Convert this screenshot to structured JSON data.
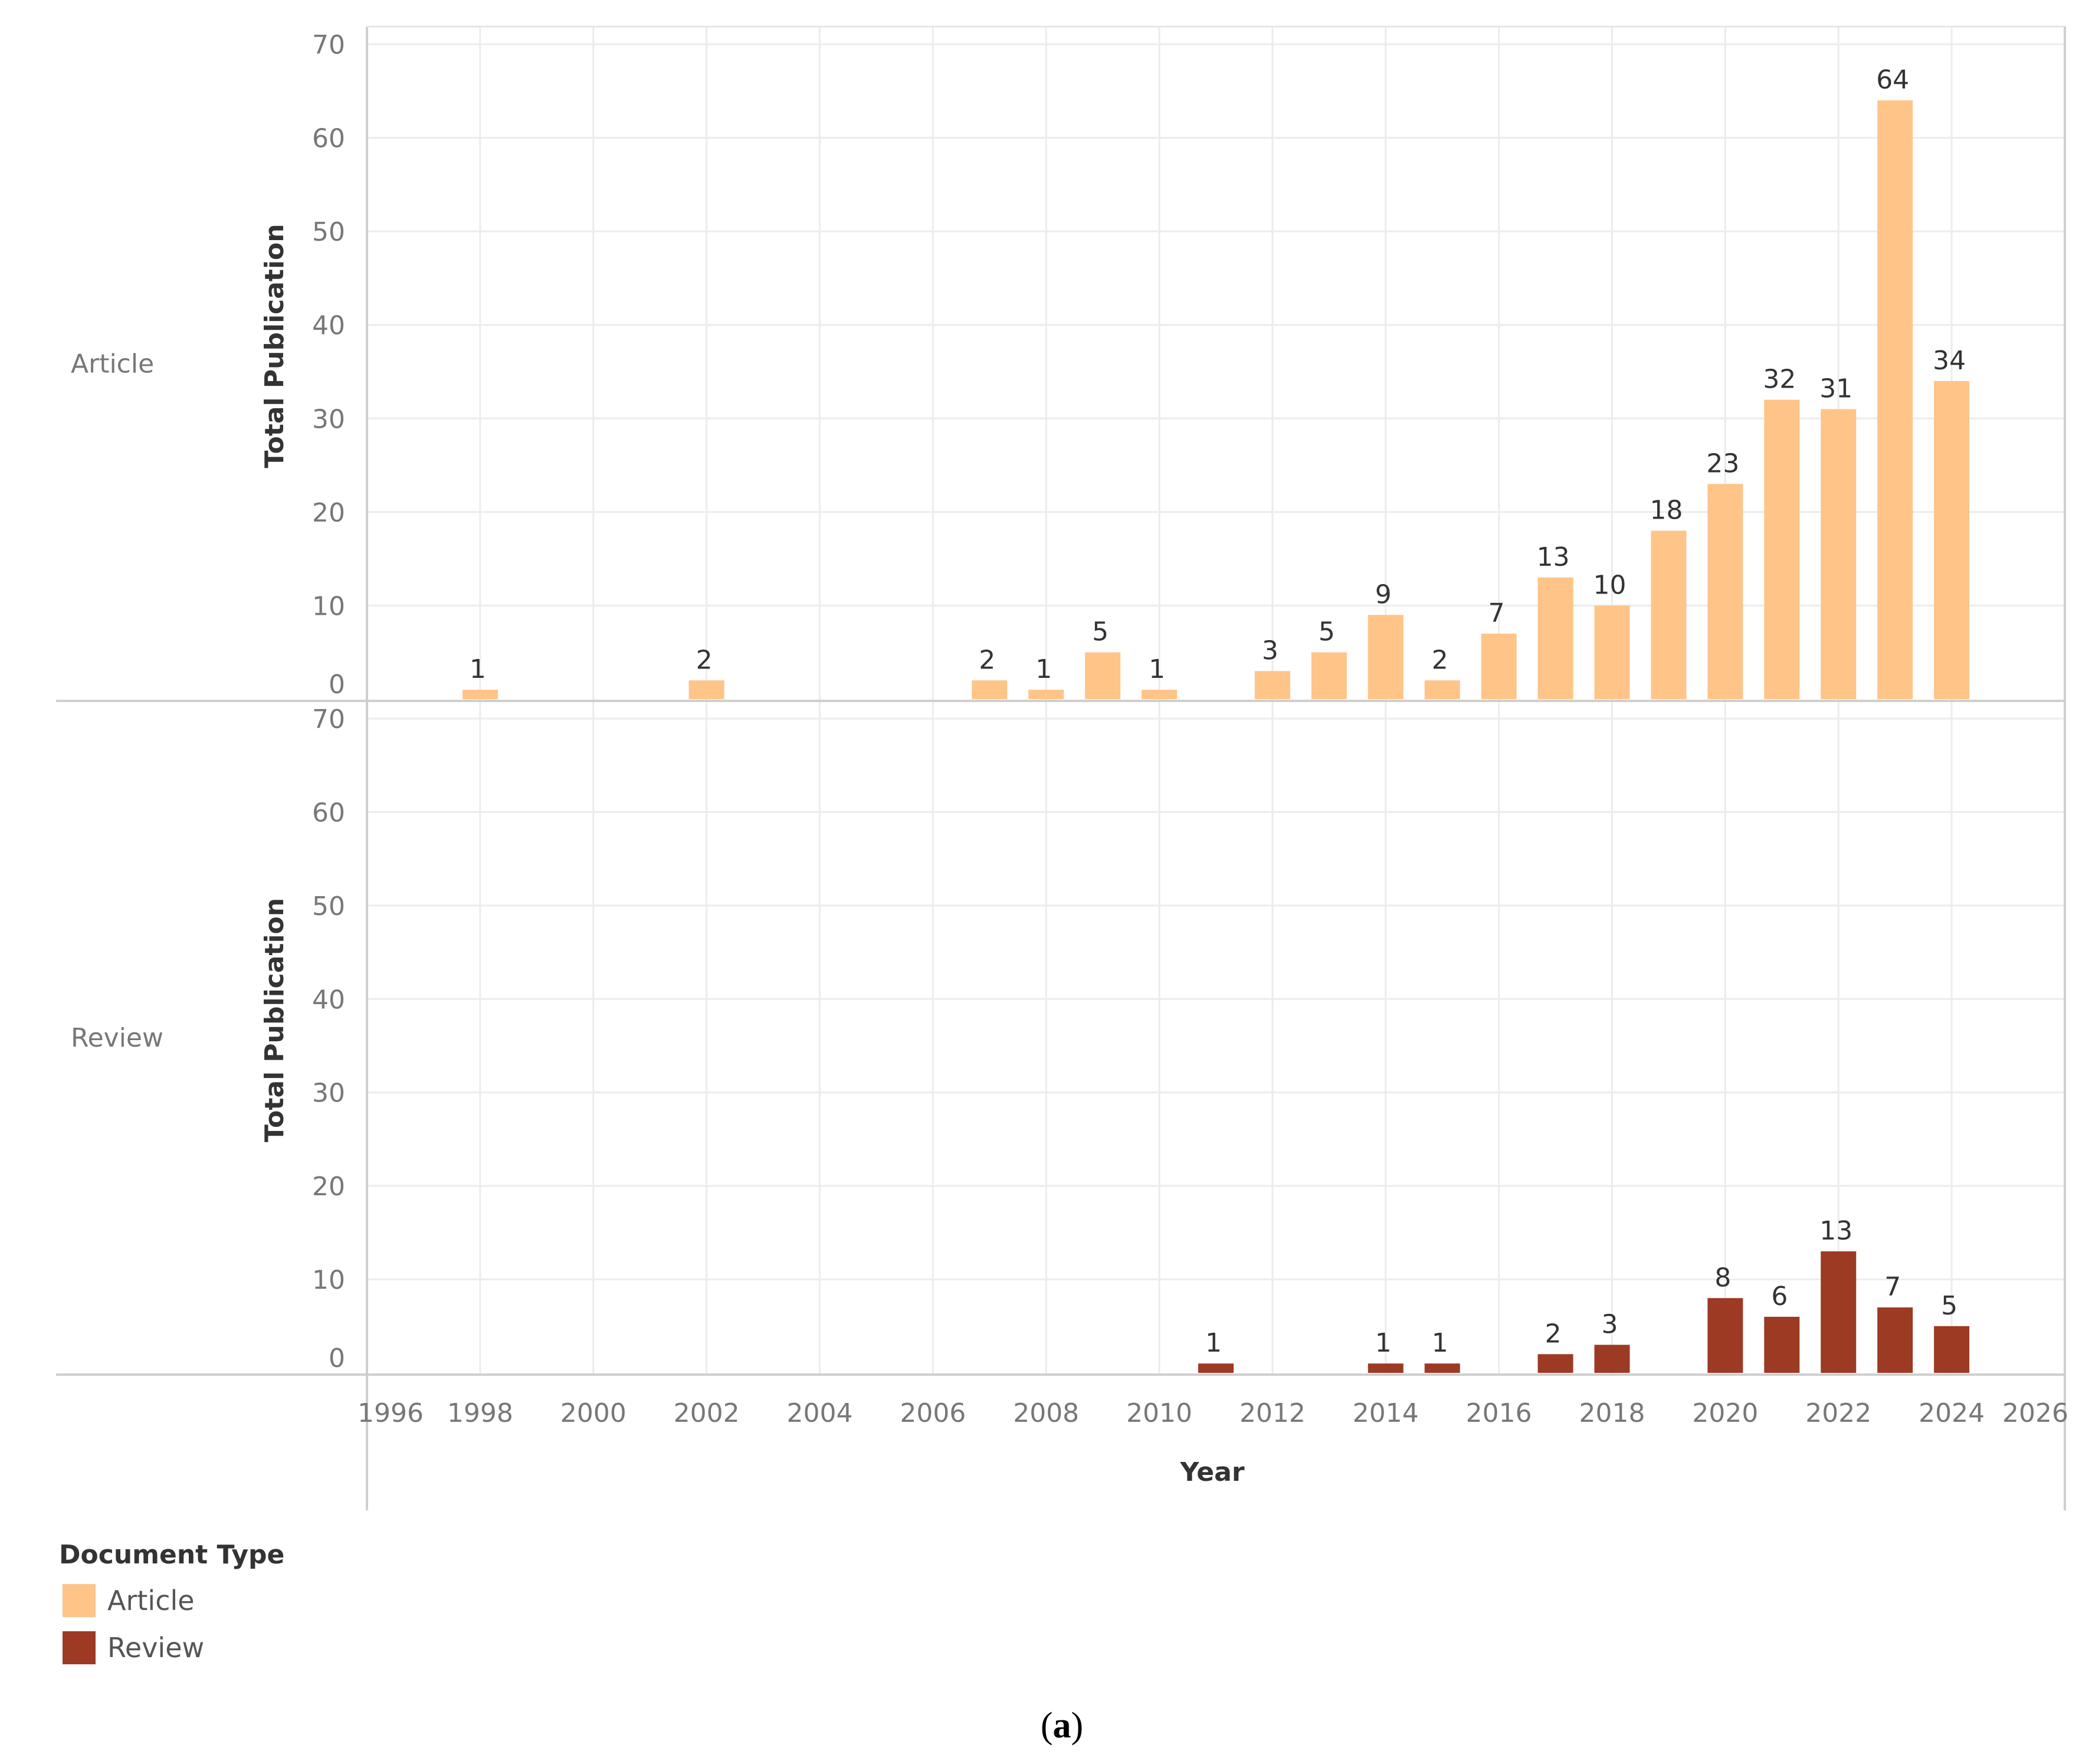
{
  "chart_data": {
    "type": "bar",
    "xlabel": "Year",
    "ylabel": "Total Publication",
    "xlim": [
      1996,
      2026
    ],
    "ylim": [
      0,
      70
    ],
    "x_ticks": [
      1996,
      1998,
      2000,
      2002,
      2004,
      2006,
      2008,
      2010,
      2012,
      2014,
      2016,
      2018,
      2020,
      2022,
      2024,
      2026
    ],
    "y_ticks": [
      0,
      10,
      20,
      30,
      40,
      50,
      60,
      70
    ],
    "grid": true,
    "legend_title": "Document Type",
    "legend_position": "bottom-left",
    "caption": {
      "open": "(",
      "letter": "a",
      "close": ")"
    },
    "series": [
      {
        "name": "Article",
        "color": "#fec488",
        "points": [
          {
            "x": 1998,
            "y": 1
          },
          {
            "x": 2002,
            "y": 2
          },
          {
            "x": 2007,
            "y": 2
          },
          {
            "x": 2008,
            "y": 1
          },
          {
            "x": 2009,
            "y": 5
          },
          {
            "x": 2010,
            "y": 1
          },
          {
            "x": 2012,
            "y": 3
          },
          {
            "x": 2013,
            "y": 5
          },
          {
            "x": 2014,
            "y": 9
          },
          {
            "x": 2015,
            "y": 2
          },
          {
            "x": 2016,
            "y": 7
          },
          {
            "x": 2017,
            "y": 13
          },
          {
            "x": 2018,
            "y": 10
          },
          {
            "x": 2019,
            "y": 18
          },
          {
            "x": 2020,
            "y": 23
          },
          {
            "x": 2021,
            "y": 32
          },
          {
            "x": 2022,
            "y": 31
          },
          {
            "x": 2023,
            "y": 64
          },
          {
            "x": 2024,
            "y": 34
          }
        ]
      },
      {
        "name": "Review",
        "color": "#9c3a23",
        "points": [
          {
            "x": 2011,
            "y": 1
          },
          {
            "x": 2014,
            "y": 1
          },
          {
            "x": 2015,
            "y": 1
          },
          {
            "x": 2017,
            "y": 2
          },
          {
            "x": 2018,
            "y": 3
          },
          {
            "x": 2020,
            "y": 8
          },
          {
            "x": 2021,
            "y": 6
          },
          {
            "x": 2022,
            "y": 13
          },
          {
            "x": 2023,
            "y": 7
          },
          {
            "x": 2024,
            "y": 5
          }
        ]
      }
    ]
  }
}
